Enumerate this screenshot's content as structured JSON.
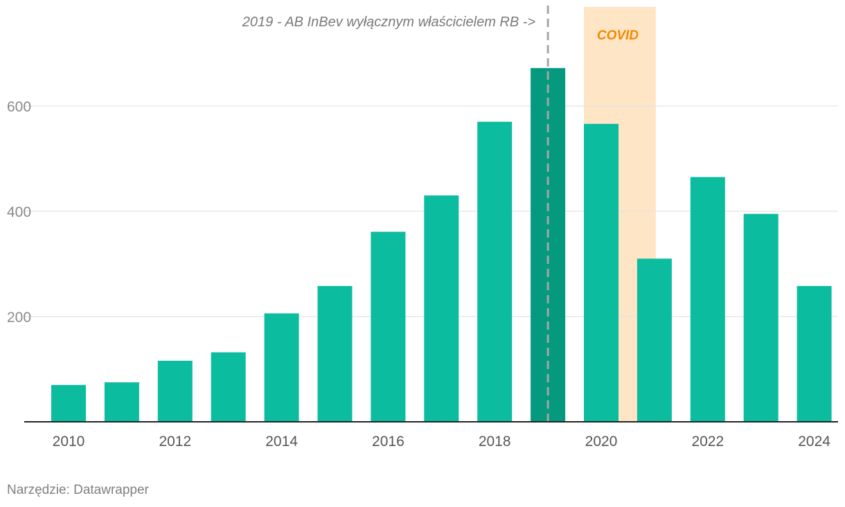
{
  "chart_data": {
    "type": "bar",
    "categories": [
      "2010",
      "2011",
      "2012",
      "2013",
      "2014",
      "2015",
      "2016",
      "2017",
      "2018",
      "2019",
      "2020",
      "2021",
      "2022",
      "2023",
      "2024"
    ],
    "values": [
      70,
      75,
      116,
      132,
      206,
      258,
      361,
      430,
      570,
      672,
      566,
      310,
      465,
      395,
      258
    ],
    "highlight_category": "2019",
    "title": "",
    "xlabel": "",
    "ylabel": "",
    "ylim": [
      0,
      790
    ],
    "yticks": [
      200,
      400,
      600
    ],
    "xtick_labels": [
      "2010",
      "2012",
      "2014",
      "2016",
      "2018",
      "2020",
      "2022",
      "2024"
    ],
    "grid": true,
    "annotations": {
      "reference_line": {
        "x": "2019",
        "label": "2019 - AB InBev wyłącznym właścicielem RB ->"
      },
      "shaded_range": {
        "from": "2020",
        "to": "2021",
        "label": "COVID"
      }
    }
  },
  "colors": {
    "bar": "#0bbc9f",
    "bar_highlight": "#05997e",
    "gridline": "#e3e3e3",
    "baseline": "#222222",
    "tick_label": "#8a8a8a",
    "x_tick_label": "#555555",
    "reference_line": "#a6a6a6",
    "annotation_text": "#7a7a7a",
    "covid_band": "#fde5c6",
    "covid_text": "#f28a00"
  },
  "footer": {
    "source": "Narzędzie: Datawrapper"
  }
}
